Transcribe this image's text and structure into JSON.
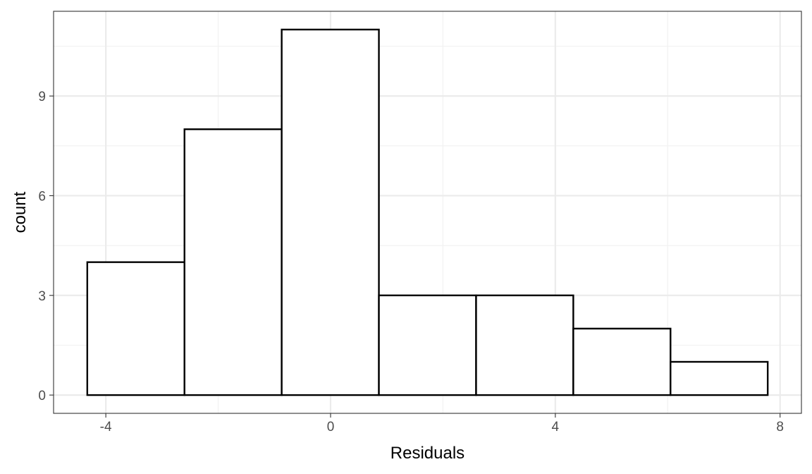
{
  "chart_data": {
    "type": "bar",
    "subtype": "histogram",
    "title": "",
    "xlabel": "Residuals",
    "ylabel": "count",
    "bins": [
      {
        "x0": -4.33,
        "x1": -2.6,
        "count": 4
      },
      {
        "x0": -2.6,
        "x1": -0.87,
        "count": 8
      },
      {
        "x0": -0.87,
        "x1": 0.86,
        "count": 11
      },
      {
        "x0": 0.86,
        "x1": 2.59,
        "count": 3
      },
      {
        "x0": 2.59,
        "x1": 4.32,
        "count": 3
      },
      {
        "x0": 4.32,
        "x1": 6.05,
        "count": 2
      },
      {
        "x0": 6.05,
        "x1": 7.78,
        "count": 1
      }
    ],
    "xlim": [
      -4.93,
      8.38
    ],
    "ylim": [
      -0.55,
      11.55
    ],
    "x_ticks": [
      -4,
      0,
      4,
      8
    ],
    "x_tick_labels": [
      "-4",
      "0",
      "4",
      "8"
    ],
    "x_minor_ticks": [
      -2,
      2,
      6
    ],
    "y_ticks": [
      0,
      3,
      6,
      9
    ],
    "y_tick_labels": [
      "0",
      "3",
      "6",
      "9"
    ],
    "y_minor_ticks": [
      1.5,
      4.5,
      7.5,
      10.5
    ],
    "grid": true,
    "legend": "none",
    "colors": {
      "bar_fill": "#ffffff",
      "bar_stroke": "#000000",
      "grid_major": "#ebebeb",
      "grid_minor": "#f2f2f2",
      "panel_border": "#333333",
      "tick_label": "#4d4d4d"
    }
  }
}
